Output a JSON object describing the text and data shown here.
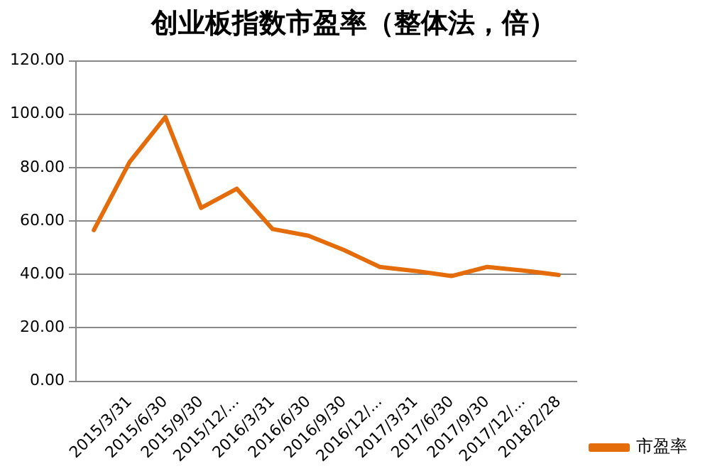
{
  "chart_data": {
    "type": "line",
    "title": "创业板指数市盈率（整体法，倍）",
    "categories": [
      null,
      "2015/3/31",
      "2015/6/30",
      "2015/9/30",
      "2015/12/...",
      "2016/3/31",
      "2016/6/30",
      "2016/9/30",
      "2016/12/...",
      "2017/3/31",
      "2017/6/30",
      "2017/9/30",
      "2017/12/...",
      "2018/2/28"
    ],
    "series": [
      {
        "name": "市盈率",
        "color": "#e46c0a",
        "values": [
          56.6,
          82.1,
          98.9,
          64.9,
          72.1,
          57.0,
          54.5,
          49.1,
          42.8,
          41.3,
          39.4,
          42.8,
          41.5,
          39.8
        ]
      }
    ],
    "ylim": [
      0,
      120
    ],
    "yticks": [
      {
        "value": 0,
        "label": "0.00"
      },
      {
        "value": 20,
        "label": "20.00"
      },
      {
        "value": 40,
        "label": "40.00"
      },
      {
        "value": 60,
        "label": "60.00"
      },
      {
        "value": 80,
        "label": "80.00"
      },
      {
        "value": 100,
        "label": "100.00"
      },
      {
        "value": 120,
        "label": "120.00"
      }
    ],
    "grid": "y",
    "legend": "bottom right",
    "marker": "none",
    "line_style": "solid"
  }
}
